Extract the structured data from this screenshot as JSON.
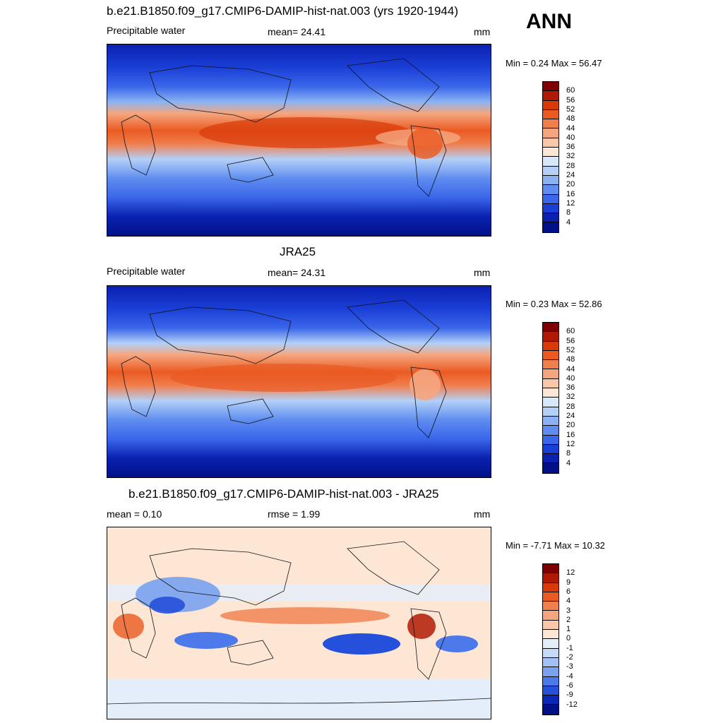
{
  "header": {
    "case_title": "b.e21.B1850.f09_g17.CMIP6-DAMIP-hist-nat.003 (yrs 1920-1944)",
    "season": "ANN"
  },
  "panels": [
    {
      "title": "",
      "left_label": "Precipitable water",
      "center_label": "mean=  24.41",
      "right_label": "mm",
      "minmax": "Min =   0.24 Max =  56.47",
      "colorbar": {
        "levels": [
          "60",
          "56",
          "52",
          "48",
          "44",
          "40",
          "36",
          "32",
          "28",
          "24",
          "20",
          "16",
          "12",
          "8",
          "4"
        ],
        "colors": [
          "#7f0000",
          "#b01a05",
          "#d83a0a",
          "#ea5a22",
          "#f07f4e",
          "#f5a67f",
          "#fac7a8",
          "#fde6d3",
          "#d8e8fb",
          "#b3d0f7",
          "#8bb3f2",
          "#5f8def",
          "#3a66ea",
          "#1a3fd6",
          "#0a21b0",
          "#001188"
        ]
      }
    },
    {
      "title": "JRA25",
      "left_label": "Precipitable water",
      "center_label": "mean=  24.31",
      "right_label": "mm",
      "minmax": "Min =   0.23 Max =  52.86",
      "colorbar": {
        "levels": [
          "60",
          "56",
          "52",
          "48",
          "44",
          "40",
          "36",
          "32",
          "28",
          "24",
          "20",
          "16",
          "12",
          "8",
          "4"
        ],
        "colors": [
          "#7f0000",
          "#b01a05",
          "#d83a0a",
          "#ea5a22",
          "#f07f4e",
          "#f5a67f",
          "#fac7a8",
          "#fde6d3",
          "#d8e8fb",
          "#b3d0f7",
          "#8bb3f2",
          "#5f8def",
          "#3a66ea",
          "#1a3fd6",
          "#0a21b0",
          "#001188"
        ]
      }
    },
    {
      "title": "b.e21.B1850.f09_g17.CMIP6-DAMIP-hist-nat.003 - JRA25",
      "left_label": "mean =   0.10",
      "center_label": "rmse =   1.99",
      "right_label": "mm",
      "minmax": "Min =  -7.71 Max =  10.32",
      "colorbar": {
        "levels": [
          "12",
          "9",
          "6",
          "4",
          "3",
          "2",
          "1",
          "0",
          "-1",
          "-2",
          "-3",
          "-4",
          "-6",
          "-9",
          "-12"
        ],
        "colors": [
          "#7f0000",
          "#b01a05",
          "#d83a0a",
          "#ea5a22",
          "#f07f4e",
          "#f5a67f",
          "#fac7a8",
          "#fde6d3",
          "#e4eefb",
          "#c6dbf7",
          "#a3c2f3",
          "#7aa2ee",
          "#4d7aea",
          "#2550dc",
          "#0a28b8",
          "#001188"
        ]
      }
    }
  ]
}
